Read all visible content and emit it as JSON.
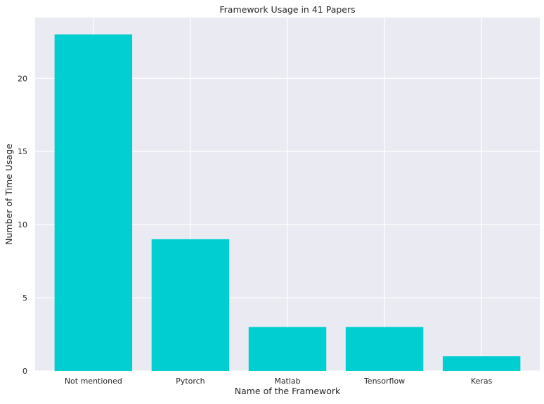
{
  "chart_data": {
    "type": "bar",
    "title": "Framework Usage in 41 Papers",
    "xlabel": "Name of the Framework",
    "ylabel": "Number of Time Usage",
    "categories": [
      "Not mentioned",
      "Pytorch",
      "Matlab",
      "Tensorflow",
      "Keras"
    ],
    "values": [
      23,
      9,
      3,
      3,
      1
    ],
    "ylim": [
      0,
      24.15
    ],
    "yticks": [
      0,
      5,
      10,
      15,
      20
    ],
    "grid": true,
    "colors": {
      "bar": "#00CED1",
      "plot_background": "#EAEAF2",
      "grid": "#FFFFFF"
    }
  }
}
